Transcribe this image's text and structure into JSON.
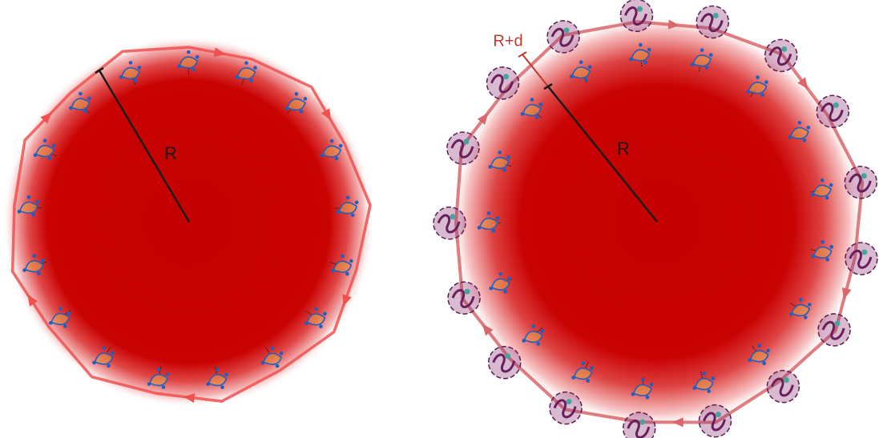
{
  "labels": {
    "left_radius": "R",
    "right_radius": "R",
    "right_extended_radius": "R+d"
  }
}
